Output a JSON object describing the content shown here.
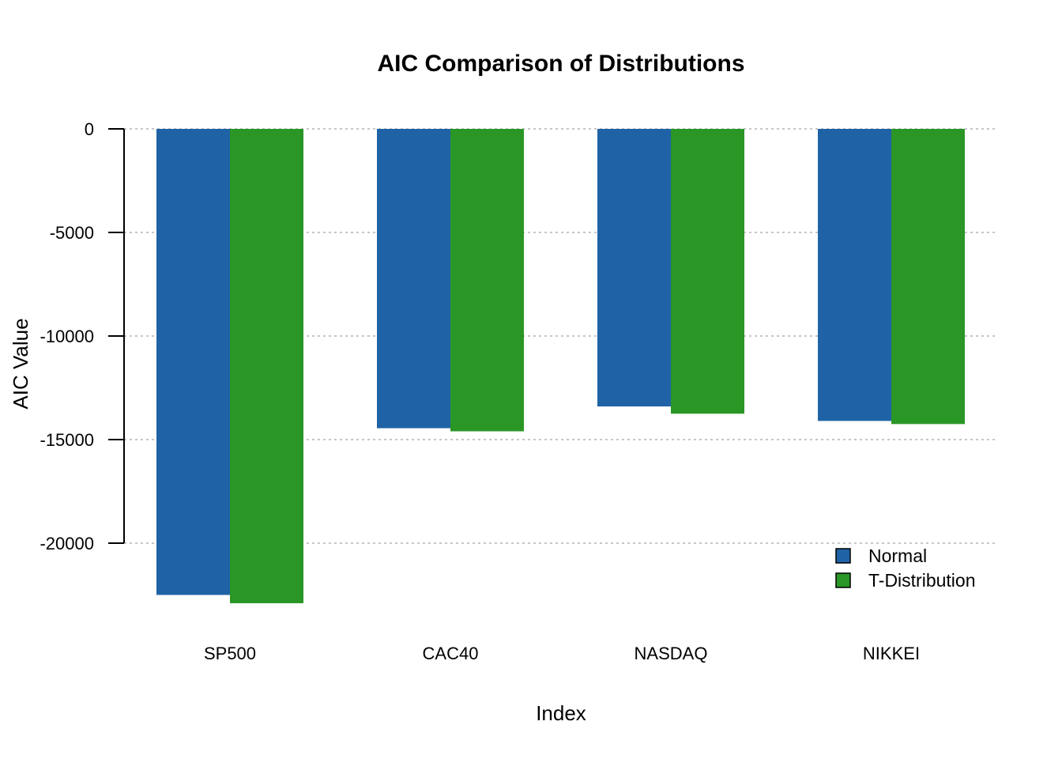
{
  "chart_data": {
    "type": "bar",
    "title": "AIC Comparison of Distributions",
    "xlabel": "Index",
    "ylabel": "AIC Value",
    "categories": [
      "SP500",
      "CAC40",
      "NASDAQ",
      "NIKKEI"
    ],
    "series": [
      {
        "name": "Normal",
        "color": "#1f63a6",
        "values": [
          -22500,
          -14450,
          -13400,
          -14100
        ]
      },
      {
        "name": "T-Distribution",
        "color": "#2a9626",
        "values": [
          -22900,
          -14600,
          -13750,
          -14250
        ]
      }
    ],
    "y_ticks": [
      0,
      -5000,
      -10000,
      -15000,
      -20000
    ],
    "y_tick_labels": [
      "0",
      "-5000",
      "-10000",
      "-15000",
      "-20000"
    ],
    "grid": true,
    "grid_style": "dotted",
    "legend_position": "bottom-right"
  }
}
